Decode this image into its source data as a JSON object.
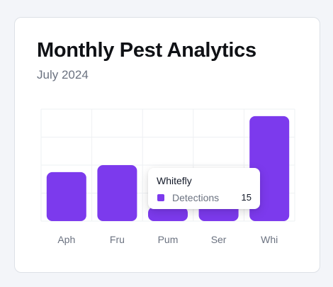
{
  "card": {
    "title": "Monthly Pest Analytics",
    "subtitle": "July 2024"
  },
  "colors": {
    "bar": "#7c3aed",
    "grid": "#eef0f3",
    "axis_label": "#6b7280"
  },
  "tooltip": {
    "title": "Whitefly",
    "series_label": "Detections",
    "value": "15"
  },
  "chart_data": {
    "type": "bar",
    "categories": [
      "Aph",
      "Fru",
      "Pum",
      "Ser",
      "Whi"
    ],
    "series": [
      {
        "name": "Detections",
        "values": [
          7,
          8,
          2,
          3,
          15
        ]
      }
    ],
    "ylim": [
      0,
      16
    ],
    "grid": true,
    "title": "",
    "xlabel": "",
    "ylabel": ""
  }
}
